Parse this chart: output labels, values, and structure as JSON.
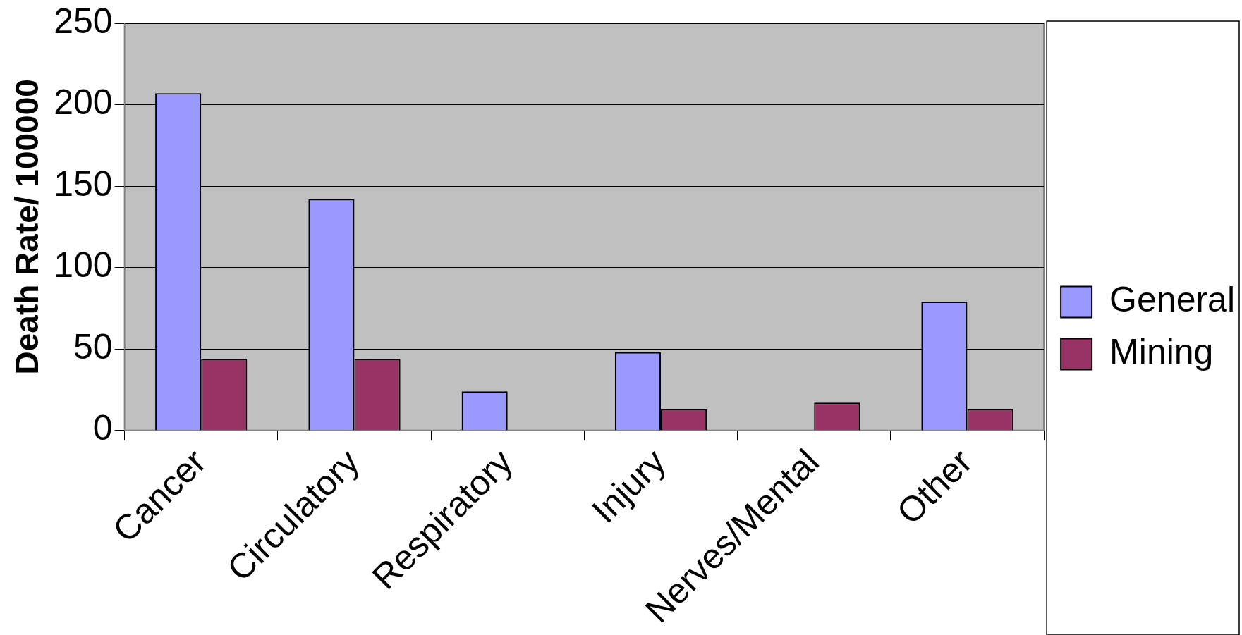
{
  "chart_data": {
    "type": "bar",
    "ylabel": "Death Rate/ 100000",
    "categories": [
      "Cancer",
      "Circulatory",
      "Respiratory",
      "Injury",
      "Nerves/Mental",
      "Other"
    ],
    "series": [
      {
        "name": "General",
        "color": "#9999ff",
        "values": [
          207,
          142,
          24,
          48,
          null,
          79
        ]
      },
      {
        "name": "Mining",
        "color": "#993366",
        "values": [
          44,
          44,
          null,
          13,
          17,
          13
        ]
      }
    ],
    "ylim": [
      0,
      250
    ],
    "yticks": [
      0,
      50,
      100,
      150,
      200,
      250
    ],
    "grid": "y",
    "legend": "right"
  }
}
